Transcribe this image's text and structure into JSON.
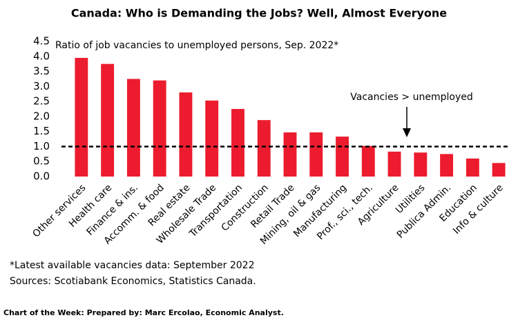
{
  "chart_data": {
    "type": "bar",
    "title": "Canada: Who is Demanding the Jobs? Well, Almost Everyone",
    "subtitle": "Ratio of job vacancies to unemployed persons, Sep. 2022*",
    "categories": [
      "Other services",
      "Health care",
      "Finance & ins.",
      "Accomm. & food",
      "Real estate",
      "Wholesale Trade",
      "Transportation",
      "Construction",
      "Retail Trade",
      "Mining, oil & gas",
      "Manufacturing",
      "Prof., sci., tech.",
      "Agriculture",
      "Utilities",
      "Publica Admin.",
      "Education",
      "Info & culture"
    ],
    "values": [
      3.95,
      3.75,
      3.25,
      3.2,
      2.8,
      2.53,
      2.25,
      1.88,
      1.47,
      1.47,
      1.33,
      1.02,
      0.83,
      0.8,
      0.75,
      0.6,
      0.45
    ],
    "color": "#ec1c2e",
    "ylim": [
      0,
      4.5
    ],
    "yticks": [
      {
        "value": 0,
        "label": "0.0"
      },
      0.5,
      {
        "value": 1,
        "label": "1.0"
      },
      1.5,
      {
        "value": 2,
        "label": "2.0"
      },
      2.5,
      {
        "value": 3,
        "label": "3.0"
      },
      3.5,
      {
        "value": 4,
        "label": "4.0"
      },
      4.5
    ],
    "reference_line": {
      "value": 1,
      "label": "Vacancies > unemployed"
    },
    "footnotes": [
      "*Latest available vacancies data: September 2022",
      "Sources: Scotiabank Economics, Statistics Canada."
    ],
    "footer": "Chart of the Week:  Prepared by: Marc Ercolao, Economic Analyst."
  }
}
